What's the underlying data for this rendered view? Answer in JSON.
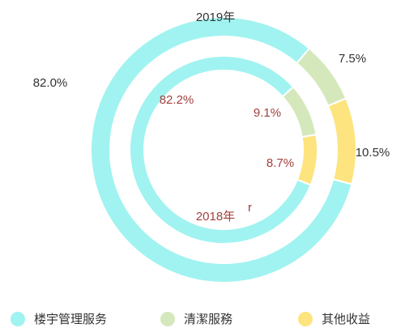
{
  "chart_data": {
    "type": "donut",
    "categories": [
      "楼宇管理服务",
      "清潔服務",
      "其他收益"
    ],
    "colors": [
      "#a0f3f0",
      "#d5e8bb",
      "#fde47e"
    ],
    "series": [
      {
        "name": "2019年",
        "values": [
          82.0,
          7.5,
          10.5
        ],
        "value_labels": [
          "82.0%",
          "7.5%",
          "10.5%"
        ]
      },
      {
        "name": "2018年",
        "values": [
          82.2,
          9.1,
          8.7
        ],
        "value_labels": [
          "82.2%",
          "9.1%",
          "8.7%"
        ]
      }
    ],
    "annotation": "r"
  }
}
